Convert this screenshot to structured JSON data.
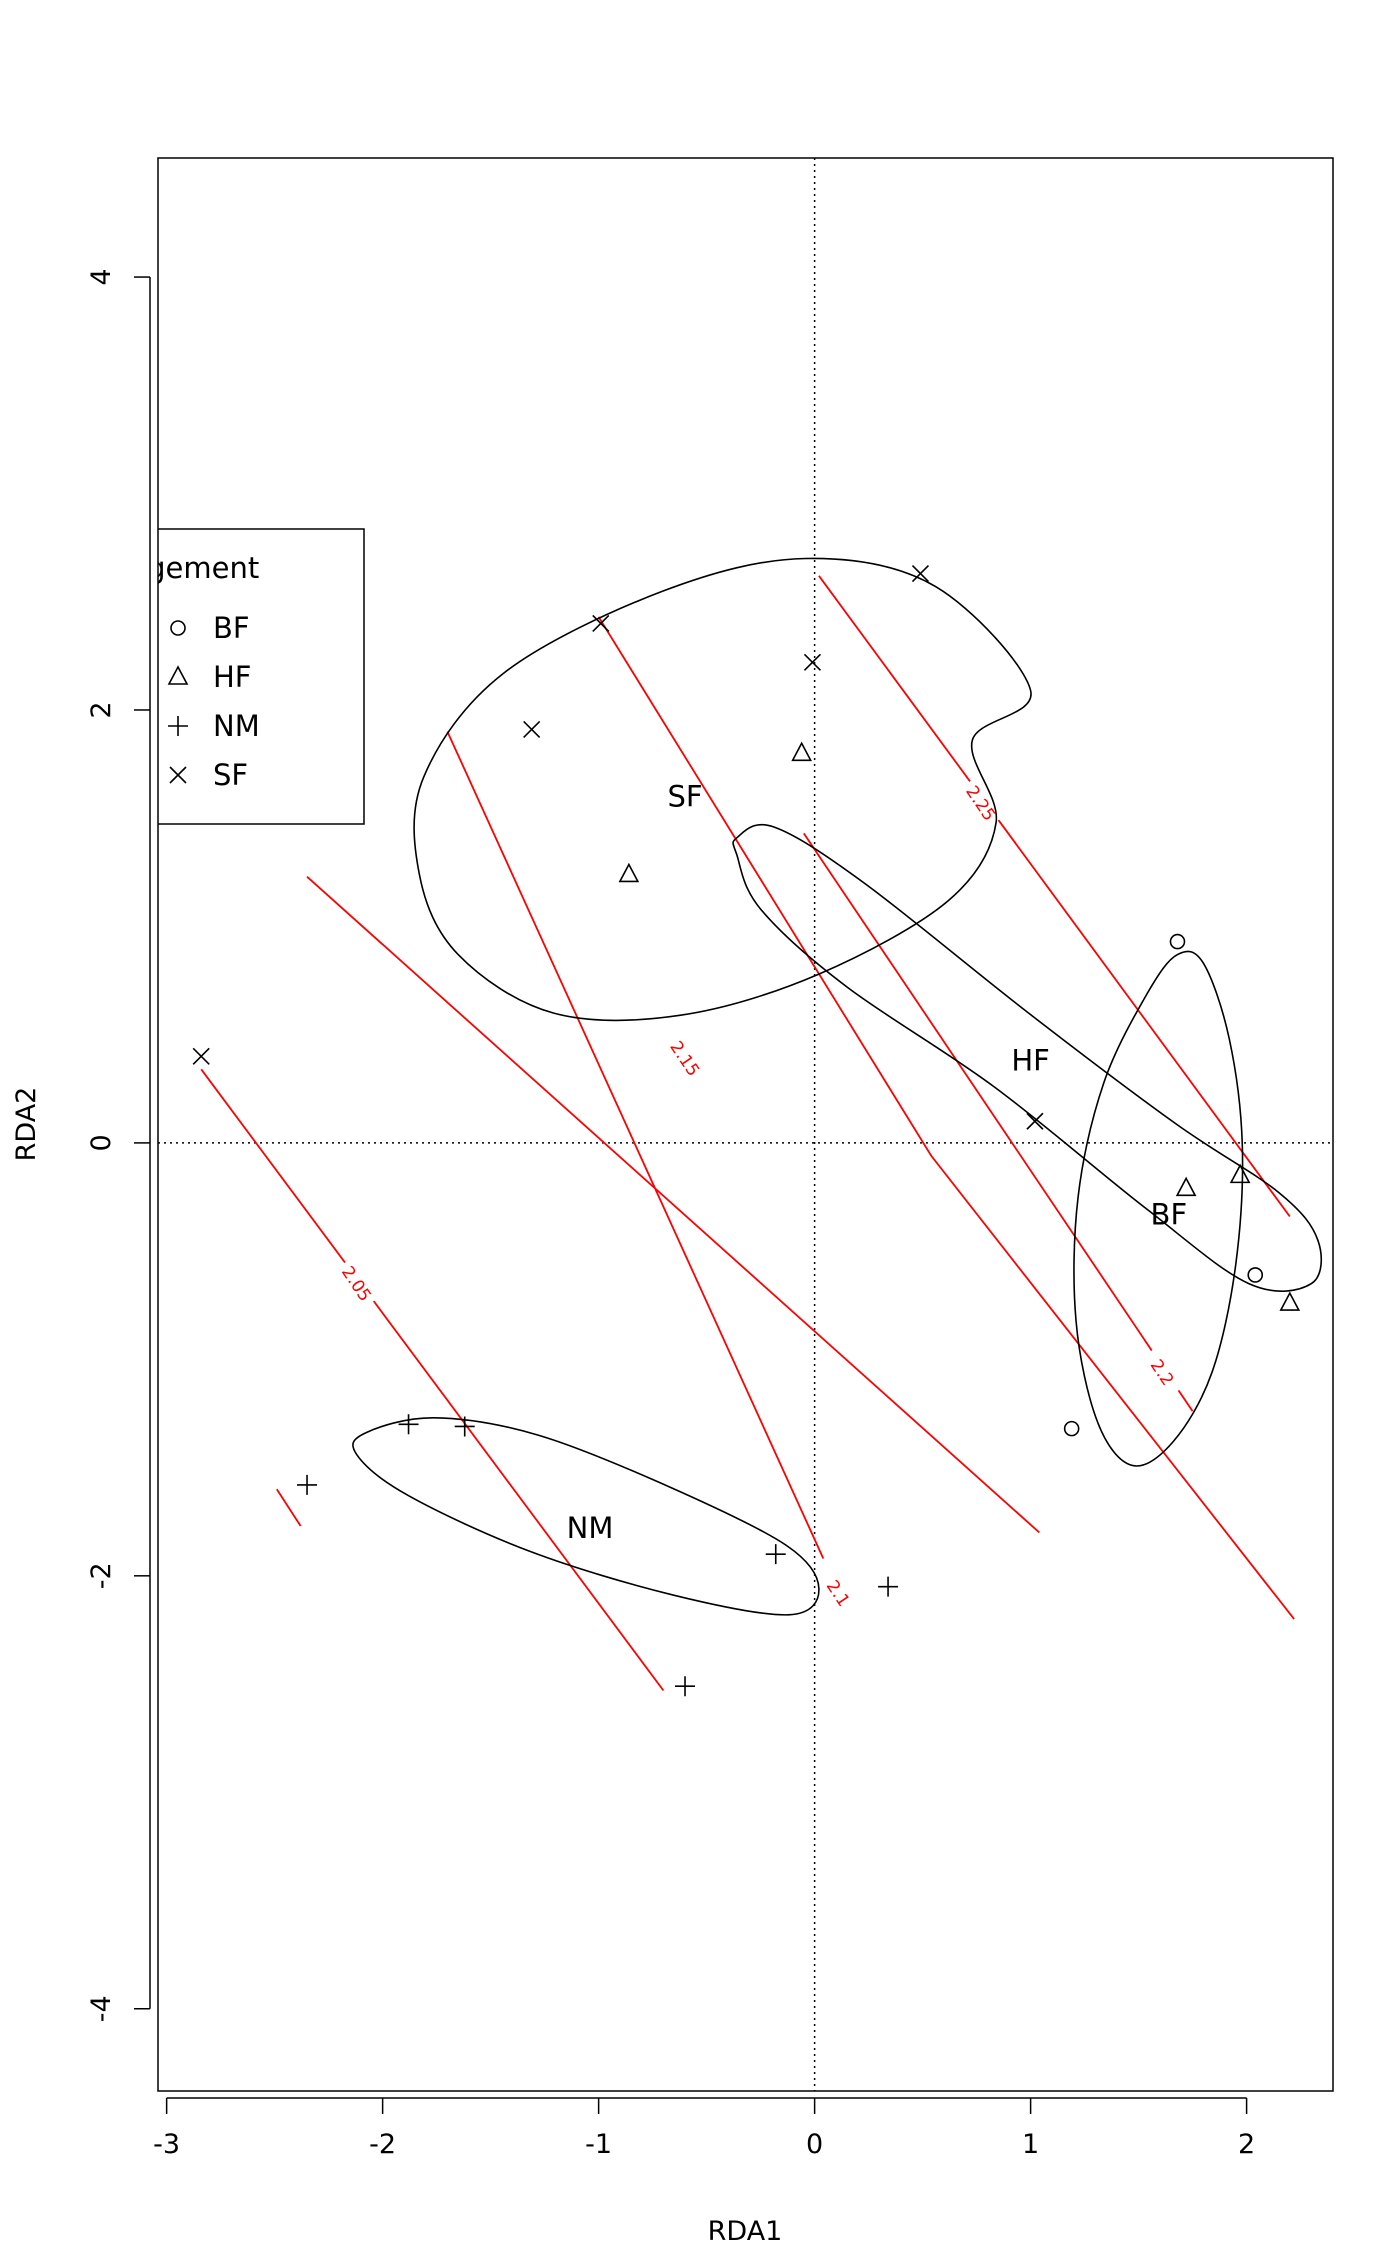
{
  "chart_data": {
    "type": "scatter",
    "title": "",
    "xlabel": "RDA1",
    "ylabel": "RDA2",
    "xlim": [
      -3.04,
      2.4
    ],
    "ylim": [
      -4.38,
      4.55
    ],
    "xticks": [
      -3,
      -2,
      -1,
      0,
      1,
      2
    ],
    "yticks": [
      -4,
      -2,
      0,
      2,
      4
    ],
    "x_tick_labels": [
      "-3",
      "-2",
      "-1",
      "0",
      "1",
      "2"
    ],
    "y_tick_labels": [
      "-4",
      "-2",
      "0",
      "2",
      "4"
    ],
    "grid": false,
    "reference_lines": {
      "x": 0,
      "y": 0,
      "style": "dotted"
    },
    "legend": {
      "title": "Management",
      "visible_title": "nagement",
      "placement": "left, clipped at plot edge",
      "entries": [
        {
          "label": "BF",
          "symbol": "circle"
        },
        {
          "label": "HF",
          "symbol": "triangle"
        },
        {
          "label": "NM",
          "symbol": "plus"
        },
        {
          "label": "SF",
          "symbol": "cross"
        }
      ]
    },
    "series": [
      {
        "name": "BF",
        "symbol": "circle",
        "points": [
          [
            1.68,
            0.93
          ],
          [
            2.04,
            -0.61
          ],
          [
            1.19,
            -1.32
          ]
        ]
      },
      {
        "name": "HF",
        "symbol": "triangle",
        "points": [
          [
            -0.06,
            1.8
          ],
          [
            -0.86,
            1.24
          ],
          [
            1.72,
            -0.21
          ],
          [
            1.97,
            -0.15
          ],
          [
            2.2,
            -0.74
          ]
        ]
      },
      {
        "name": "NM",
        "symbol": "plus",
        "points": [
          [
            -1.88,
            -1.3
          ],
          [
            -1.62,
            -1.31
          ],
          [
            -2.35,
            -1.58
          ],
          [
            -0.18,
            -1.9
          ],
          [
            0.34,
            -2.05
          ],
          [
            -0.6,
            -2.51
          ]
        ]
      },
      {
        "name": "SF",
        "symbol": "cross",
        "points": [
          [
            0.49,
            2.63
          ],
          [
            -0.01,
            2.22
          ],
          [
            -0.99,
            2.4
          ],
          [
            -1.31,
            1.91
          ],
          [
            -2.84,
            0.4
          ],
          [
            1.02,
            0.1
          ]
        ]
      }
    ],
    "ellipses": [
      {
        "group": "SF",
        "label_pos": [
          -0.6,
          1.6
        ],
        "path": [
          [
            1.0,
            2.09
          ],
          [
            0.56,
            2.57
          ],
          [
            -0.04,
            2.7
          ],
          [
            -0.7,
            2.55
          ],
          [
            -1.44,
            2.17
          ],
          [
            -1.81,
            1.69
          ],
          [
            -1.83,
            1.24
          ],
          [
            -1.65,
            0.87
          ],
          [
            -1.21,
            0.6
          ],
          [
            -0.62,
            0.59
          ],
          [
            0.02,
            0.78
          ],
          [
            0.62,
            1.12
          ],
          [
            0.84,
            1.48
          ],
          [
            0.73,
            1.86
          ]
        ]
      },
      {
        "group": "HF",
        "label_pos": [
          1.0,
          0.38
        ],
        "path": [
          [
            -0.36,
            1.41
          ],
          [
            -0.19,
            1.46
          ],
          [
            0.23,
            1.2
          ],
          [
            0.99,
            0.6
          ],
          [
            1.67,
            0.09
          ],
          [
            2.15,
            -0.23
          ],
          [
            2.33,
            -0.45
          ],
          [
            2.3,
            -0.65
          ],
          [
            2.01,
            -0.65
          ],
          [
            1.53,
            -0.3
          ],
          [
            0.83,
            0.26
          ],
          [
            0.15,
            0.72
          ],
          [
            -0.25,
            1.08
          ],
          [
            -0.36,
            1.33
          ]
        ]
      },
      {
        "group": "BF",
        "label_pos": [
          1.64,
          -0.33
        ],
        "path": [
          [
            1.8,
            0.83
          ],
          [
            1.92,
            0.48
          ],
          [
            1.98,
            -0.01
          ],
          [
            1.95,
            -0.56
          ],
          [
            1.84,
            -1.06
          ],
          [
            1.66,
            -1.38
          ],
          [
            1.47,
            -1.49
          ],
          [
            1.31,
            -1.29
          ],
          [
            1.21,
            -0.82
          ],
          [
            1.22,
            -0.25
          ],
          [
            1.34,
            0.28
          ],
          [
            1.54,
            0.69
          ],
          [
            1.68,
            0.87
          ]
        ]
      },
      {
        "group": "NM",
        "label_pos": [
          -1.04,
          -1.78
        ],
        "path": [
          [
            -2.08,
            -1.34
          ],
          [
            -1.76,
            -1.27
          ],
          [
            -1.28,
            -1.35
          ],
          [
            -0.67,
            -1.59
          ],
          [
            -0.13,
            -1.86
          ],
          [
            0.02,
            -2.06
          ],
          [
            -0.12,
            -2.18
          ],
          [
            -0.65,
            -2.09
          ],
          [
            -1.31,
            -1.89
          ],
          [
            -1.88,
            -1.63
          ],
          [
            -2.12,
            -1.44
          ]
        ]
      }
    ],
    "contours": [
      {
        "label": "2.05",
        "label_pos": [
          -2.12,
          -0.65
        ],
        "segments": [
          [
            [
              -2.84,
              0.34
            ],
            [
              -0.7,
              -2.53
            ]
          ],
          [
            [
              -2.49,
              -1.6
            ],
            [
              -2.38,
              -1.77
            ]
          ]
        ]
      },
      {
        "label": "2.1",
        "label_pos": [
          0.11,
          -2.08
        ],
        "segments": [
          [
            [
              -2.35,
              1.23
            ],
            [
              1.04,
              -1.8
            ]
          ],
          [
            [
              -1.7,
              1.9
            ],
            [
              0.04,
              -1.92
            ]
          ]
        ]
      },
      {
        "label": "2.15",
        "label_pos": [
          -0.6,
          0.39
        ],
        "segments": [
          [
            [
              -1.0,
              2.43
            ],
            [
              0.54,
              -0.06
            ],
            [
              2.22,
              -2.2
            ]
          ]
        ]
      },
      {
        "label": "2.2",
        "label_pos": [
          1.61,
          -1.06
        ],
        "segments": [
          [
            [
              -0.05,
              1.43
            ],
            [
              1.75,
              -1.24
            ]
          ]
        ]
      },
      {
        "label": "2.25",
        "label_pos": [
          0.77,
          1.57
        ],
        "segments": [
          [
            [
              0.02,
              2.62
            ],
            [
              2.2,
              -0.34
            ]
          ]
        ]
      }
    ]
  }
}
